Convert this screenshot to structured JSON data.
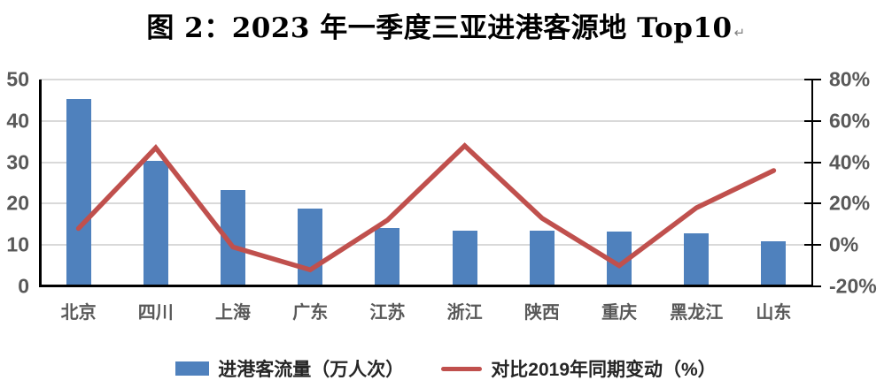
{
  "title": {
    "text": "图 2：2023 年一季度三亚进港客源地 Top10",
    "mark": "↵"
  },
  "chart_data": {
    "type": "combo",
    "title": "图 2：2023 年一季度三亚进港客源地 Top10",
    "categories": [
      "北京",
      "四川",
      "上海",
      "广东",
      "江苏",
      "浙江",
      "陕西",
      "重庆",
      "黑龙江",
      "山东"
    ],
    "series": [
      {
        "name": "进港客流量（万人次）",
        "type": "bar",
        "axis": "left",
        "color": "#4F81BD",
        "values": [
          45.3,
          30.3,
          23.3,
          18.8,
          14.0,
          13.5,
          13.4,
          13.3,
          12.8,
          11.0
        ]
      },
      {
        "name": "对比2019年同期变动（%）",
        "type": "line",
        "axis": "right",
        "color": "#C0504D",
        "values": [
          8,
          47,
          -1,
          -12,
          12,
          48,
          13,
          -10,
          18,
          36
        ]
      }
    ],
    "left_axis": {
      "min": 0,
      "max": 50,
      "tick_values": [
        0,
        10,
        20,
        30,
        40,
        50
      ],
      "tick_labels": [
        "0",
        "10",
        "20",
        "30",
        "40",
        "50"
      ]
    },
    "right_axis": {
      "min": -20,
      "max": 80,
      "tick_values": [
        -20,
        0,
        20,
        40,
        60,
        80
      ],
      "tick_labels": [
        "-20%",
        "0%",
        "20%",
        "40%",
        "60%",
        "80%"
      ]
    },
    "grid": true,
    "grid_color": "#D9D9D9",
    "axis_color": "#000000",
    "tick_label_color": "#595959",
    "legend_position": "bottom"
  },
  "legend": {
    "bar_label": "进港客流量（万人次）",
    "line_label": "对比2019年同期变动（%）"
  }
}
